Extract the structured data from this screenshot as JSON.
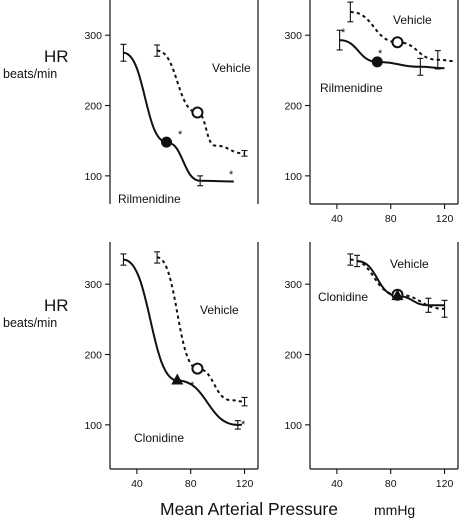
{
  "figure": {
    "y_title": "HR",
    "y_unit": "beats/min",
    "x_title": "Mean Arterial Pressure",
    "x_unit": "mmHg"
  },
  "chart_data": [
    {
      "type": "line",
      "panel": "top-left",
      "ylim": [
        60,
        350
      ],
      "y_ticks": [
        100,
        200,
        300
      ],
      "x_ticks": [],
      "series": [
        {
          "name": "Vehicle",
          "style": "dashed",
          "marker": "open-circle",
          "marker_point": {
            "x": 85,
            "y": 190
          },
          "points": [
            {
              "x": 55,
              "y": 278,
              "err": 8
            },
            {
              "x": 98,
              "y": 143
            },
            {
              "x": 120,
              "y": 132,
              "err": 4
            }
          ]
        },
        {
          "name": "Rilmenidine",
          "style": "solid",
          "marker": "filled-circle",
          "marker_point": {
            "x": 62,
            "y": 148
          },
          "points": [
            {
              "x": 30,
              "y": 275,
              "err": 12
            },
            {
              "x": 87,
              "y": 93,
              "err": 7
            },
            {
              "x": 112,
              "y": 92
            }
          ]
        }
      ],
      "annotations": [
        "*",
        "*"
      ]
    },
    {
      "type": "line",
      "panel": "top-right",
      "ylim": [
        60,
        350
      ],
      "y_ticks": [
        100,
        200,
        300
      ],
      "x_ticks": [
        40,
        80,
        120
      ],
      "series": [
        {
          "name": "Vehicle",
          "style": "dashed",
          "marker": "open-circle",
          "marker_point": {
            "x": 85,
            "y": 290
          },
          "points": [
            {
              "x": 50,
              "y": 333,
              "err": 14
            },
            {
              "x": 115,
              "y": 265,
              "err": 13
            },
            {
              "x": 128,
              "y": 263
            }
          ]
        },
        {
          "name": "Rilmenidine",
          "style": "solid",
          "marker": "filled-circle",
          "marker_point": {
            "x": 70,
            "y": 262
          },
          "points": [
            {
              "x": 42,
              "y": 293,
              "err": 14
            },
            {
              "x": 102,
              "y": 255,
              "err": 12
            },
            {
              "x": 120,
              "y": 253
            }
          ]
        }
      ],
      "annotations": [
        "*",
        "*"
      ]
    },
    {
      "type": "line",
      "panel": "bottom-left",
      "ylim": [
        60,
        350
      ],
      "y_ticks": [
        100,
        200,
        300
      ],
      "x_ticks": [
        40,
        80,
        120
      ],
      "series": [
        {
          "name": "Vehicle",
          "style": "dashed",
          "marker": "open-circle",
          "marker_point": {
            "x": 85,
            "y": 180
          },
          "points": [
            {
              "x": 55,
              "y": 338,
              "err": 8
            },
            {
              "x": 110,
              "y": 135
            },
            {
              "x": 120,
              "y": 133,
              "err": 6
            }
          ]
        },
        {
          "name": "Clonidine",
          "style": "solid",
          "marker": "filled-triangle",
          "marker_point": {
            "x": 70,
            "y": 163
          },
          "points": [
            {
              "x": 30,
              "y": 335,
              "err": 8
            },
            {
              "x": 115,
              "y": 100,
              "err": 6
            },
            {
              "x": 118,
              "y": 100
            }
          ]
        }
      ],
      "annotations": [
        "*",
        "*"
      ]
    },
    {
      "type": "line",
      "panel": "bottom-right",
      "ylim": [
        60,
        350
      ],
      "y_ticks": [
        100,
        200,
        300
      ],
      "x_ticks": [
        40,
        80,
        120
      ],
      "series": [
        {
          "name": "Vehicle",
          "style": "dashed",
          "marker": "open-circle",
          "marker_point": {
            "x": 85,
            "y": 285
          },
          "points": [
            {
              "x": 50,
              "y": 335,
              "err": 8
            },
            {
              "x": 120,
              "y": 265,
              "err": 12
            }
          ]
        },
        {
          "name": "Clonidine",
          "style": "solid",
          "marker": "filled-triangle",
          "marker_point": {
            "x": 85,
            "y": 283
          },
          "points": [
            {
              "x": 55,
              "y": 333,
              "err": 8
            },
            {
              "x": 108,
              "y": 270,
              "err": 10
            },
            {
              "x": 120,
              "y": 270
            }
          ]
        }
      ],
      "annotations": []
    }
  ]
}
